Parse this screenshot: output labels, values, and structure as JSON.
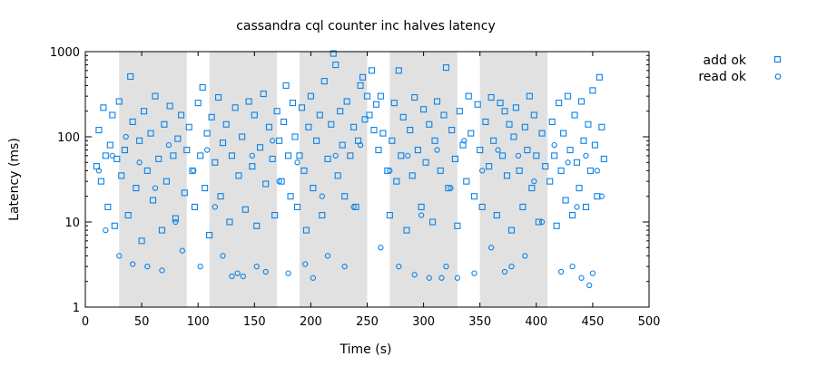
{
  "chart_data": {
    "type": "scatter",
    "title": "cassandra cql counter inc halves latency",
    "xlabel": "Time (s)",
    "ylabel": "Latency (ms)",
    "xlim": [
      0,
      500
    ],
    "ylim": [
      1,
      1000
    ],
    "y_scale": "log",
    "x_ticks": [
      0,
      50,
      100,
      150,
      200,
      250,
      300,
      350,
      400,
      450,
      500
    ],
    "y_ticks": [
      {
        "value": 1,
        "label": "1"
      },
      {
        "value": 10,
        "label": "10"
      },
      {
        "value": 100,
        "label": "100"
      },
      {
        "value": 1000,
        "label": "1000"
      }
    ],
    "legend_position": "top-right, outside plot",
    "shaded_intervals": [
      [
        30,
        90
      ],
      [
        110,
        170
      ],
      [
        190,
        250
      ],
      [
        270,
        330
      ],
      [
        350,
        410
      ]
    ],
    "series": [
      {
        "name": "add ok",
        "marker": "square",
        "color": "#0a83e8",
        "points": [
          [
            10,
            45
          ],
          [
            12,
            120
          ],
          [
            14,
            30
          ],
          [
            16,
            220
          ],
          [
            18,
            60
          ],
          [
            20,
            15
          ],
          [
            22,
            80
          ],
          [
            24,
            180
          ],
          [
            26,
            9
          ],
          [
            28,
            55
          ],
          [
            30,
            260
          ],
          [
            32,
            35
          ],
          [
            35,
            70
          ],
          [
            38,
            12
          ],
          [
            40,
            510
          ],
          [
            42,
            150
          ],
          [
            45,
            25
          ],
          [
            48,
            90
          ],
          [
            50,
            6
          ],
          [
            52,
            200
          ],
          [
            55,
            40
          ],
          [
            58,
            110
          ],
          [
            60,
            18
          ],
          [
            62,
            300
          ],
          [
            65,
            55
          ],
          [
            68,
            8
          ],
          [
            70,
            140
          ],
          [
            72,
            30
          ],
          [
            75,
            230
          ],
          [
            78,
            60
          ],
          [
            80,
            11
          ],
          [
            82,
            95
          ],
          [
            85,
            180
          ],
          [
            88,
            22
          ],
          [
            90,
            70
          ],
          [
            92,
            130
          ],
          [
            95,
            40
          ],
          [
            97,
            15
          ],
          [
            100,
            250
          ],
          [
            102,
            60
          ],
          [
            104,
            380
          ],
          [
            106,
            25
          ],
          [
            108,
            110
          ],
          [
            110,
            7
          ],
          [
            112,
            170
          ],
          [
            115,
            50
          ],
          [
            118,
            290
          ],
          [
            120,
            20
          ],
          [
            122,
            85
          ],
          [
            125,
            140
          ],
          [
            128,
            10
          ],
          [
            130,
            60
          ],
          [
            133,
            220
          ],
          [
            136,
            35
          ],
          [
            139,
            100
          ],
          [
            142,
            14
          ],
          [
            145,
            260
          ],
          [
            148,
            45
          ],
          [
            150,
            180
          ],
          [
            152,
            9
          ],
          [
            155,
            75
          ],
          [
            158,
            320
          ],
          [
            160,
            28
          ],
          [
            163,
            130
          ],
          [
            166,
            55
          ],
          [
            168,
            12
          ],
          [
            170,
            200
          ],
          [
            172,
            90
          ],
          [
            174,
            30
          ],
          [
            176,
            150
          ],
          [
            178,
            400
          ],
          [
            180,
            60
          ],
          [
            182,
            20
          ],
          [
            184,
            250
          ],
          [
            186,
            100
          ],
          [
            188,
            15
          ],
          [
            190,
            60
          ],
          [
            192,
            220
          ],
          [
            194,
            40
          ],
          [
            196,
            8
          ],
          [
            198,
            130
          ],
          [
            200,
            300
          ],
          [
            202,
            25
          ],
          [
            205,
            90
          ],
          [
            208,
            180
          ],
          [
            210,
            12
          ],
          [
            212,
            450
          ],
          [
            215,
            55
          ],
          [
            218,
            140
          ],
          [
            220,
            950
          ],
          [
            222,
            700
          ],
          [
            224,
            35
          ],
          [
            226,
            200
          ],
          [
            228,
            80
          ],
          [
            230,
            20
          ],
          [
            232,
            260
          ],
          [
            235,
            60
          ],
          [
            238,
            130
          ],
          [
            240,
            15
          ],
          [
            242,
            90
          ],
          [
            244,
            400
          ],
          [
            246,
            500
          ],
          [
            248,
            160
          ],
          [
            250,
            300
          ],
          [
            252,
            180
          ],
          [
            254,
            600
          ],
          [
            256,
            120
          ],
          [
            258,
            240
          ],
          [
            260,
            70
          ],
          [
            262,
            300
          ],
          [
            264,
            110
          ],
          [
            268,
            40
          ],
          [
            270,
            12
          ],
          [
            272,
            90
          ],
          [
            274,
            250
          ],
          [
            276,
            30
          ],
          [
            278,
            600
          ],
          [
            280,
            60
          ],
          [
            282,
            170
          ],
          [
            285,
            8
          ],
          [
            288,
            120
          ],
          [
            290,
            35
          ],
          [
            292,
            290
          ],
          [
            295,
            70
          ],
          [
            298,
            15
          ],
          [
            300,
            210
          ],
          [
            302,
            50
          ],
          [
            305,
            140
          ],
          [
            308,
            10
          ],
          [
            310,
            90
          ],
          [
            312,
            260
          ],
          [
            315,
            40
          ],
          [
            318,
            180
          ],
          [
            320,
            650
          ],
          [
            322,
            25
          ],
          [
            325,
            120
          ],
          [
            328,
            55
          ],
          [
            330,
            9
          ],
          [
            332,
            200
          ],
          [
            335,
            80
          ],
          [
            338,
            30
          ],
          [
            340,
            300
          ],
          [
            342,
            110
          ],
          [
            345,
            20
          ],
          [
            348,
            240
          ],
          [
            350,
            70
          ],
          [
            352,
            15
          ],
          [
            355,
            150
          ],
          [
            358,
            45
          ],
          [
            360,
            290
          ],
          [
            362,
            90
          ],
          [
            365,
            12
          ],
          [
            368,
            250
          ],
          [
            370,
            60
          ],
          [
            372,
            200
          ],
          [
            374,
            35
          ],
          [
            376,
            140
          ],
          [
            378,
            8
          ],
          [
            380,
            100
          ],
          [
            382,
            220
          ],
          [
            385,
            40
          ],
          [
            388,
            15
          ],
          [
            390,
            130
          ],
          [
            392,
            70
          ],
          [
            394,
            300
          ],
          [
            396,
            25
          ],
          [
            398,
            180
          ],
          [
            400,
            60
          ],
          [
            402,
            10
          ],
          [
            405,
            110
          ],
          [
            408,
            45
          ],
          [
            412,
            30
          ],
          [
            414,
            150
          ],
          [
            416,
            60
          ],
          [
            418,
            9
          ],
          [
            420,
            250
          ],
          [
            422,
            40
          ],
          [
            424,
            110
          ],
          [
            426,
            18
          ],
          [
            428,
            300
          ],
          [
            430,
            70
          ],
          [
            432,
            12
          ],
          [
            434,
            180
          ],
          [
            436,
            50
          ],
          [
            438,
            25
          ],
          [
            440,
            260
          ],
          [
            442,
            90
          ],
          [
            444,
            15
          ],
          [
            446,
            140
          ],
          [
            448,
            40
          ],
          [
            450,
            350
          ],
          [
            452,
            80
          ],
          [
            454,
            20
          ],
          [
            456,
            500
          ],
          [
            458,
            130
          ],
          [
            460,
            55
          ]
        ]
      },
      {
        "name": "read ok",
        "marker": "circle",
        "color": "#0a83e8",
        "points": [
          [
            12,
            40
          ],
          [
            18,
            8
          ],
          [
            24,
            60
          ],
          [
            30,
            4
          ],
          [
            36,
            100
          ],
          [
            42,
            3.2
          ],
          [
            48,
            50
          ],
          [
            55,
            3
          ],
          [
            62,
            25
          ],
          [
            68,
            2.7
          ],
          [
            74,
            80
          ],
          [
            80,
            10
          ],
          [
            86,
            4.6
          ],
          [
            96,
            40
          ],
          [
            102,
            3
          ],
          [
            108,
            70
          ],
          [
            115,
            15
          ],
          [
            122,
            4
          ],
          [
            130,
            2.3
          ],
          [
            135,
            2.5
          ],
          [
            140,
            2.3
          ],
          [
            148,
            60
          ],
          [
            152,
            3
          ],
          [
            160,
            2.6
          ],
          [
            166,
            90
          ],
          [
            172,
            30
          ],
          [
            180,
            2.5
          ],
          [
            188,
            50
          ],
          [
            195,
            3.2
          ],
          [
            202,
            2.2
          ],
          [
            210,
            20
          ],
          [
            215,
            4
          ],
          [
            222,
            60
          ],
          [
            230,
            3
          ],
          [
            238,
            15
          ],
          [
            244,
            80
          ],
          [
            262,
            5
          ],
          [
            270,
            40
          ],
          [
            278,
            3
          ],
          [
            286,
            60
          ],
          [
            292,
            2.4
          ],
          [
            298,
            12
          ],
          [
            305,
            2.2
          ],
          [
            312,
            70
          ],
          [
            316,
            2.2
          ],
          [
            320,
            3
          ],
          [
            324,
            25
          ],
          [
            330,
            2.2
          ],
          [
            336,
            90
          ],
          [
            345,
            2.5
          ],
          [
            352,
            40
          ],
          [
            360,
            5
          ],
          [
            366,
            70
          ],
          [
            372,
            2.6
          ],
          [
            378,
            3
          ],
          [
            384,
            60
          ],
          [
            390,
            4
          ],
          [
            398,
            30
          ],
          [
            405,
            10
          ],
          [
            416,
            80
          ],
          [
            422,
            2.6
          ],
          [
            428,
            50
          ],
          [
            432,
            3
          ],
          [
            436,
            15
          ],
          [
            440,
            2.2
          ],
          [
            444,
            60
          ],
          [
            447,
            1.8
          ],
          [
            450,
            2.5
          ],
          [
            454,
            40
          ],
          [
            458,
            20
          ]
        ]
      }
    ]
  }
}
